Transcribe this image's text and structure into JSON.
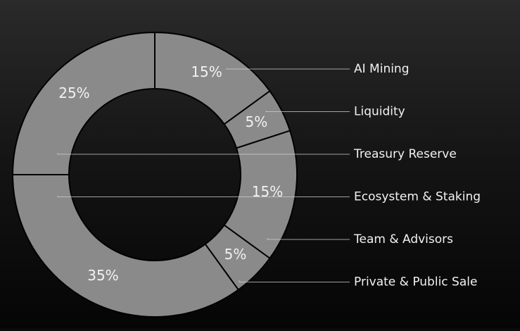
{
  "chart_data": {
    "type": "donut",
    "categories": [
      "AI Mining",
      "Liquidity",
      "Treasury Reserve",
      "Ecosystem & Staking",
      "Team & Advisors",
      "Private & Public Sale"
    ],
    "values": [
      15,
      5,
      25,
      35,
      15,
      5
    ],
    "value_labels": [
      "15%",
      "5%",
      "25%",
      "35%",
      "15%",
      "5%"
    ],
    "color": "#8a8a8a"
  }
}
